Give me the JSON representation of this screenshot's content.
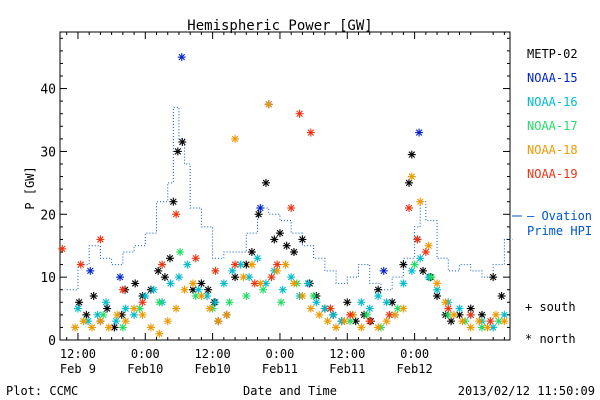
{
  "chart_data": {
    "type": "scatter",
    "title": "Hemispheric Power [GW]",
    "xlabel": "Date and Time",
    "ylabel": "P [GW]",
    "ylim": [
      0,
      49
    ],
    "ytick_values": [
      0,
      10,
      20,
      30,
      40
    ],
    "x_unit": "hours since 2013-02-09 00:00",
    "xlim": [
      8.8,
      89.0
    ],
    "xticks": [
      {
        "x": 12,
        "line1": "12:00",
        "line2": "Feb 9"
      },
      {
        "x": 24,
        "line1": "0:00",
        "line2": "Feb10"
      },
      {
        "x": 36,
        "line1": "12:00",
        "line2": "Feb10"
      },
      {
        "x": 48,
        "line1": "0:00",
        "line2": "Feb11"
      },
      {
        "x": 60,
        "line1": "12:00",
        "line2": "Feb11"
      },
      {
        "x": 72,
        "line1": "0:00",
        "line2": "Feb12"
      }
    ],
    "legend_position": "right",
    "grid": false,
    "footer_left": "Plot: CCMC",
    "footer_right": "2013/02/12 11:50:09",
    "series": [
      {
        "name": "METP-02",
        "color": "#000000",
        "marker": "*",
        "x": [
          12.2,
          13.5,
          14.8,
          16.0,
          17.2,
          18.5,
          19.8,
          20.4,
          22.2,
          23.5,
          25.0,
          26.3,
          27.5,
          28.4,
          29.0,
          29.8,
          30.6,
          32.5,
          34.0,
          35.2,
          36.3,
          37.0,
          38.5,
          40.0,
          42.0,
          43.0,
          44.2,
          45.5,
          47.0,
          48.0,
          49.2,
          50.5,
          52.0,
          53.3,
          54.5,
          56.0,
          57.5,
          59.0,
          60.0,
          61.5,
          63.0,
          64.2,
          65.5,
          68.0,
          70.0,
          71.0,
          71.5,
          72.5,
          73.5,
          74.8,
          76.0,
          77.5,
          78.5,
          80.0,
          82.0,
          84.0,
          86.0,
          87.5
        ],
        "y": [
          6,
          4,
          7,
          3,
          5,
          2,
          4,
          8,
          9,
          7,
          8,
          11,
          10,
          13,
          22,
          30,
          31.5,
          8,
          9,
          8,
          6,
          3,
          4,
          10,
          12,
          14,
          20,
          25,
          16,
          17,
          15,
          14,
          16,
          9,
          7,
          5,
          4,
          3,
          6,
          3,
          4,
          3,
          8,
          6,
          12,
          25,
          29.5,
          16,
          11,
          10,
          7,
          4,
          3,
          4,
          5,
          4,
          10,
          7
        ]
      },
      {
        "name": "NOAA-15",
        "color": "#0022cc",
        "marker": "*",
        "x": [
          14.2,
          19.5,
          30.5,
          44.5,
          46.0,
          66.5,
          72.8
        ],
        "y": [
          11,
          10,
          45,
          21,
          37.5,
          11,
          33
        ]
      },
      {
        "name": "NOAA-16",
        "color": "#00bbcc",
        "marker": "*",
        "x": [
          12.0,
          13.8,
          15.5,
          17.0,
          18.8,
          20.5,
          22.0,
          24.0,
          25.5,
          27.0,
          28.5,
          30.0,
          31.5,
          33.5,
          35.0,
          36.5,
          38.0,
          39.5,
          41.0,
          42.5,
          44.0,
          45.5,
          47.0,
          48.5,
          50.0,
          51.5,
          53.0,
          54.5,
          56.0,
          57.5,
          59.0,
          61.0,
          62.5,
          64.0,
          65.5,
          67.0,
          68.5,
          70.0,
          71.5,
          73.0,
          74.5,
          76.0,
          78.0,
          80.0,
          82.0,
          84.0,
          86.0,
          88.0
        ],
        "y": [
          5,
          3,
          4,
          6,
          3,
          5,
          4,
          7,
          8,
          6,
          9,
          10,
          12,
          8,
          7,
          6,
          9,
          11,
          12,
          10,
          13,
          9,
          11,
          8,
          10,
          7,
          9,
          6,
          5,
          4,
          3,
          4,
          6,
          5,
          7,
          6,
          4,
          9,
          11,
          13,
          10,
          8,
          6,
          5,
          4,
          3,
          2,
          4
        ]
      },
      {
        "name": "NOAA-17",
        "color": "#22dd66",
        "marker": "*",
        "x": [
          13.0,
          16.5,
          20.0,
          23.0,
          26.5,
          30.2,
          33.0,
          36.0,
          39.0,
          42.0,
          45.0,
          48.2,
          51.0,
          54.0,
          57.0,
          60.5,
          63.5,
          66.0,
          69.0,
          72.0,
          75.0,
          78.0,
          81.0,
          84.0,
          87.0
        ],
        "y": [
          3,
          4,
          2,
          5,
          6,
          14,
          7,
          5,
          6,
          7,
          8,
          6,
          9,
          7,
          5,
          3,
          4,
          2,
          5,
          12,
          10,
          4,
          3,
          2,
          3
        ]
      },
      {
        "name": "NOAA-18",
        "color": "#ee9900",
        "marker": "*",
        "x": [
          11.5,
          13.0,
          14.5,
          16.0,
          17.5,
          19.0,
          20.5,
          22.0,
          23.5,
          25.0,
          26.5,
          28.0,
          29.5,
          31.0,
          32.5,
          34.0,
          35.5,
          37.0,
          38.5,
          40.0,
          41.5,
          43.0,
          44.5,
          46.0,
          47.5,
          49.0,
          50.5,
          52.0,
          53.5,
          55.0,
          56.5,
          58.0,
          59.5,
          61.0,
          62.5,
          64.0,
          65.5,
          67.0,
          68.5,
          70.0,
          71.5,
          73.0,
          74.5,
          76.0,
          77.5,
          79.0,
          80.5,
          82.0,
          83.5,
          85.0,
          86.5,
          88.0
        ],
        "y": [
          2,
          3,
          2,
          3,
          2,
          4,
          3,
          5,
          4,
          2,
          1,
          3,
          5,
          8,
          9,
          7,
          5,
          3,
          4,
          32,
          10,
          12,
          9,
          37.5,
          11,
          12,
          9,
          7,
          5,
          4,
          3,
          2,
          3,
          4,
          2,
          3,
          2,
          3,
          4,
          5,
          26,
          22,
          15,
          9,
          6,
          4,
          3,
          2,
          3,
          2,
          4,
          3
        ]
      },
      {
        "name": "NOAA-19",
        "color": "#ee3311",
        "marker": "*",
        "x": [
          9.2,
          12.5,
          16.0,
          20.0,
          23.5,
          27.0,
          29.5,
          33.0,
          36.5,
          40.0,
          43.5,
          46.5,
          47.5,
          50.0,
          51.5,
          53.5,
          57.0,
          60.5,
          64.0,
          67.5,
          71.0,
          72.5,
          74.0,
          78.0,
          82.0,
          85.5
        ],
        "y": [
          14.5,
          12,
          16,
          8,
          6,
          12,
          20,
          13,
          11,
          12,
          9,
          10,
          12,
          21,
          36,
          33,
          5,
          4,
          3,
          4,
          21,
          16,
          14,
          5,
          4,
          3
        ]
      },
      {
        "name": "Ovation Prime HPI",
        "color": "#0055cc",
        "style": "dotted-step",
        "x": [
          10,
          12,
          14,
          16,
          18,
          20,
          22,
          24,
          26,
          28,
          29,
          30,
          31,
          32,
          34,
          36,
          38,
          40,
          42,
          44,
          46,
          48,
          50,
          52,
          54,
          56,
          58,
          60,
          62,
          64,
          66,
          68,
          70,
          72,
          73,
          74,
          76,
          78,
          80,
          82,
          84,
          86,
          88
        ],
        "y": [
          8,
          12,
          15,
          13,
          12,
          14,
          15,
          17,
          22,
          25,
          37,
          32,
          28,
          21,
          18,
          13,
          14,
          14,
          17,
          21,
          20,
          19,
          17,
          15,
          13,
          11,
          9,
          10,
          12,
          9,
          8,
          10,
          13,
          18,
          22,
          19,
          13,
          11,
          12,
          11,
          10,
          12,
          16
        ]
      }
    ],
    "legend_side": [
      {
        "label": "— Ovation",
        "color": "#0055cc"
      },
      {
        "label": "Prime HPI",
        "color": "#0055cc"
      }
    ],
    "symbol_key": [
      {
        "label": "+ south",
        "color": "#000000"
      },
      {
        "label": "* north",
        "color": "#000000"
      }
    ]
  }
}
